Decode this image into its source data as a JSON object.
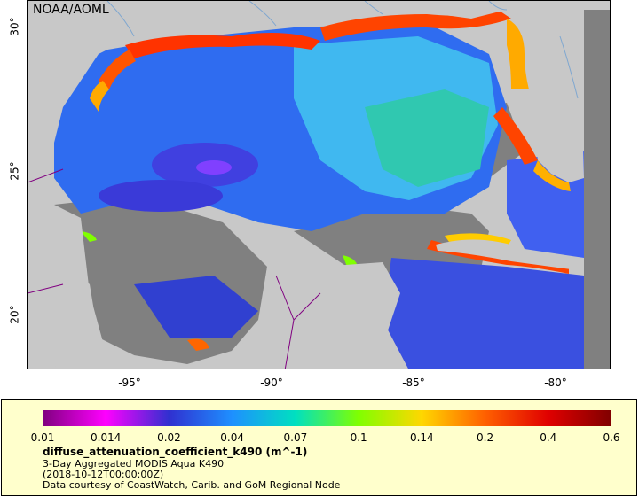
{
  "map": {
    "attribution": "NOAA/AOML",
    "y_ticks": [
      {
        "label": "30°",
        "lat": 30
      },
      {
        "label": "25°",
        "lat": 25
      },
      {
        "label": "20°",
        "lat": 20
      }
    ],
    "x_ticks": [
      {
        "label": "-95°",
        "lon": -95
      },
      {
        "label": "-90°",
        "lon": -90
      },
      {
        "label": "-85°",
        "lon": -85
      },
      {
        "label": "-80°",
        "lon": -80
      }
    ],
    "colors": {
      "land": "#c8c8c8",
      "no_data": "#808080",
      "rivers": "#7fa7d0",
      "borders": "#800080",
      "coast_high": "#ff3300",
      "shelf": "#ffcc00",
      "open_water": "#2f6cf0",
      "deep_blue": "#4040e0"
    }
  },
  "legend": {
    "variable": "diffuse_attenuation_coefficient_k490 (m^-1)",
    "line1": "3-Day Aggregated MODIS Aqua K490",
    "line2": "(2018-10-12T00:00:00Z)",
    "line3": "Data courtesy of CoastWatch, Carib. and GoM Regional Node",
    "ticks": [
      "0.01",
      "0.014",
      "0.02",
      "0.04",
      "0.07",
      "0.1",
      "0.14",
      "0.2",
      "0.4",
      "0.6"
    ],
    "colormap": [
      "#800080",
      "#ff00ff",
      "#3030d0",
      "#1e90ff",
      "#00e0c0",
      "#80ff00",
      "#ffd700",
      "#ff6000",
      "#e00000",
      "#800000"
    ]
  }
}
